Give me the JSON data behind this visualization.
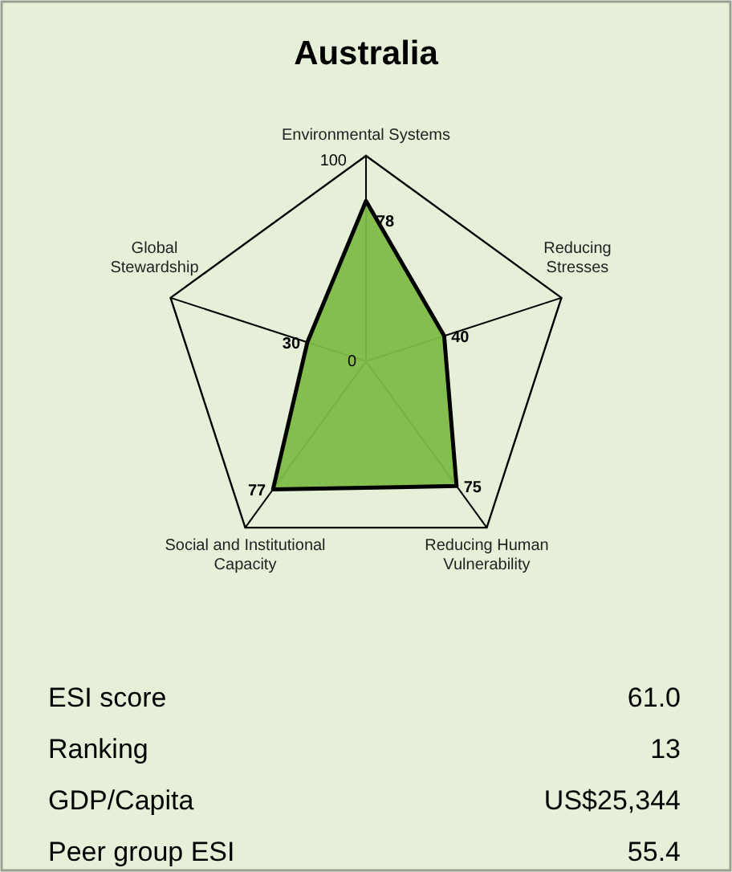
{
  "chart_data": {
    "type": "radar",
    "title": "Australia",
    "categories": [
      "Environmental Systems",
      "Reducing Stresses",
      "Reducing Human Vulnerability",
      "Social and Institutional Capacity",
      "Global Stewardship"
    ],
    "series": [
      {
        "color": "#7dbb47",
        "values": [
          78,
          40,
          75,
          77,
          30
        ]
      }
    ],
    "ylim": [
      0,
      100
    ],
    "yticks": [
      0,
      100
    ],
    "data_labels": true,
    "annotations": [
      "ESI score",
      "61.0",
      "Ranking",
      "13",
      "GDP/Capita",
      "US$25,344",
      "Peer group ESI",
      "55.4"
    ]
  }
}
